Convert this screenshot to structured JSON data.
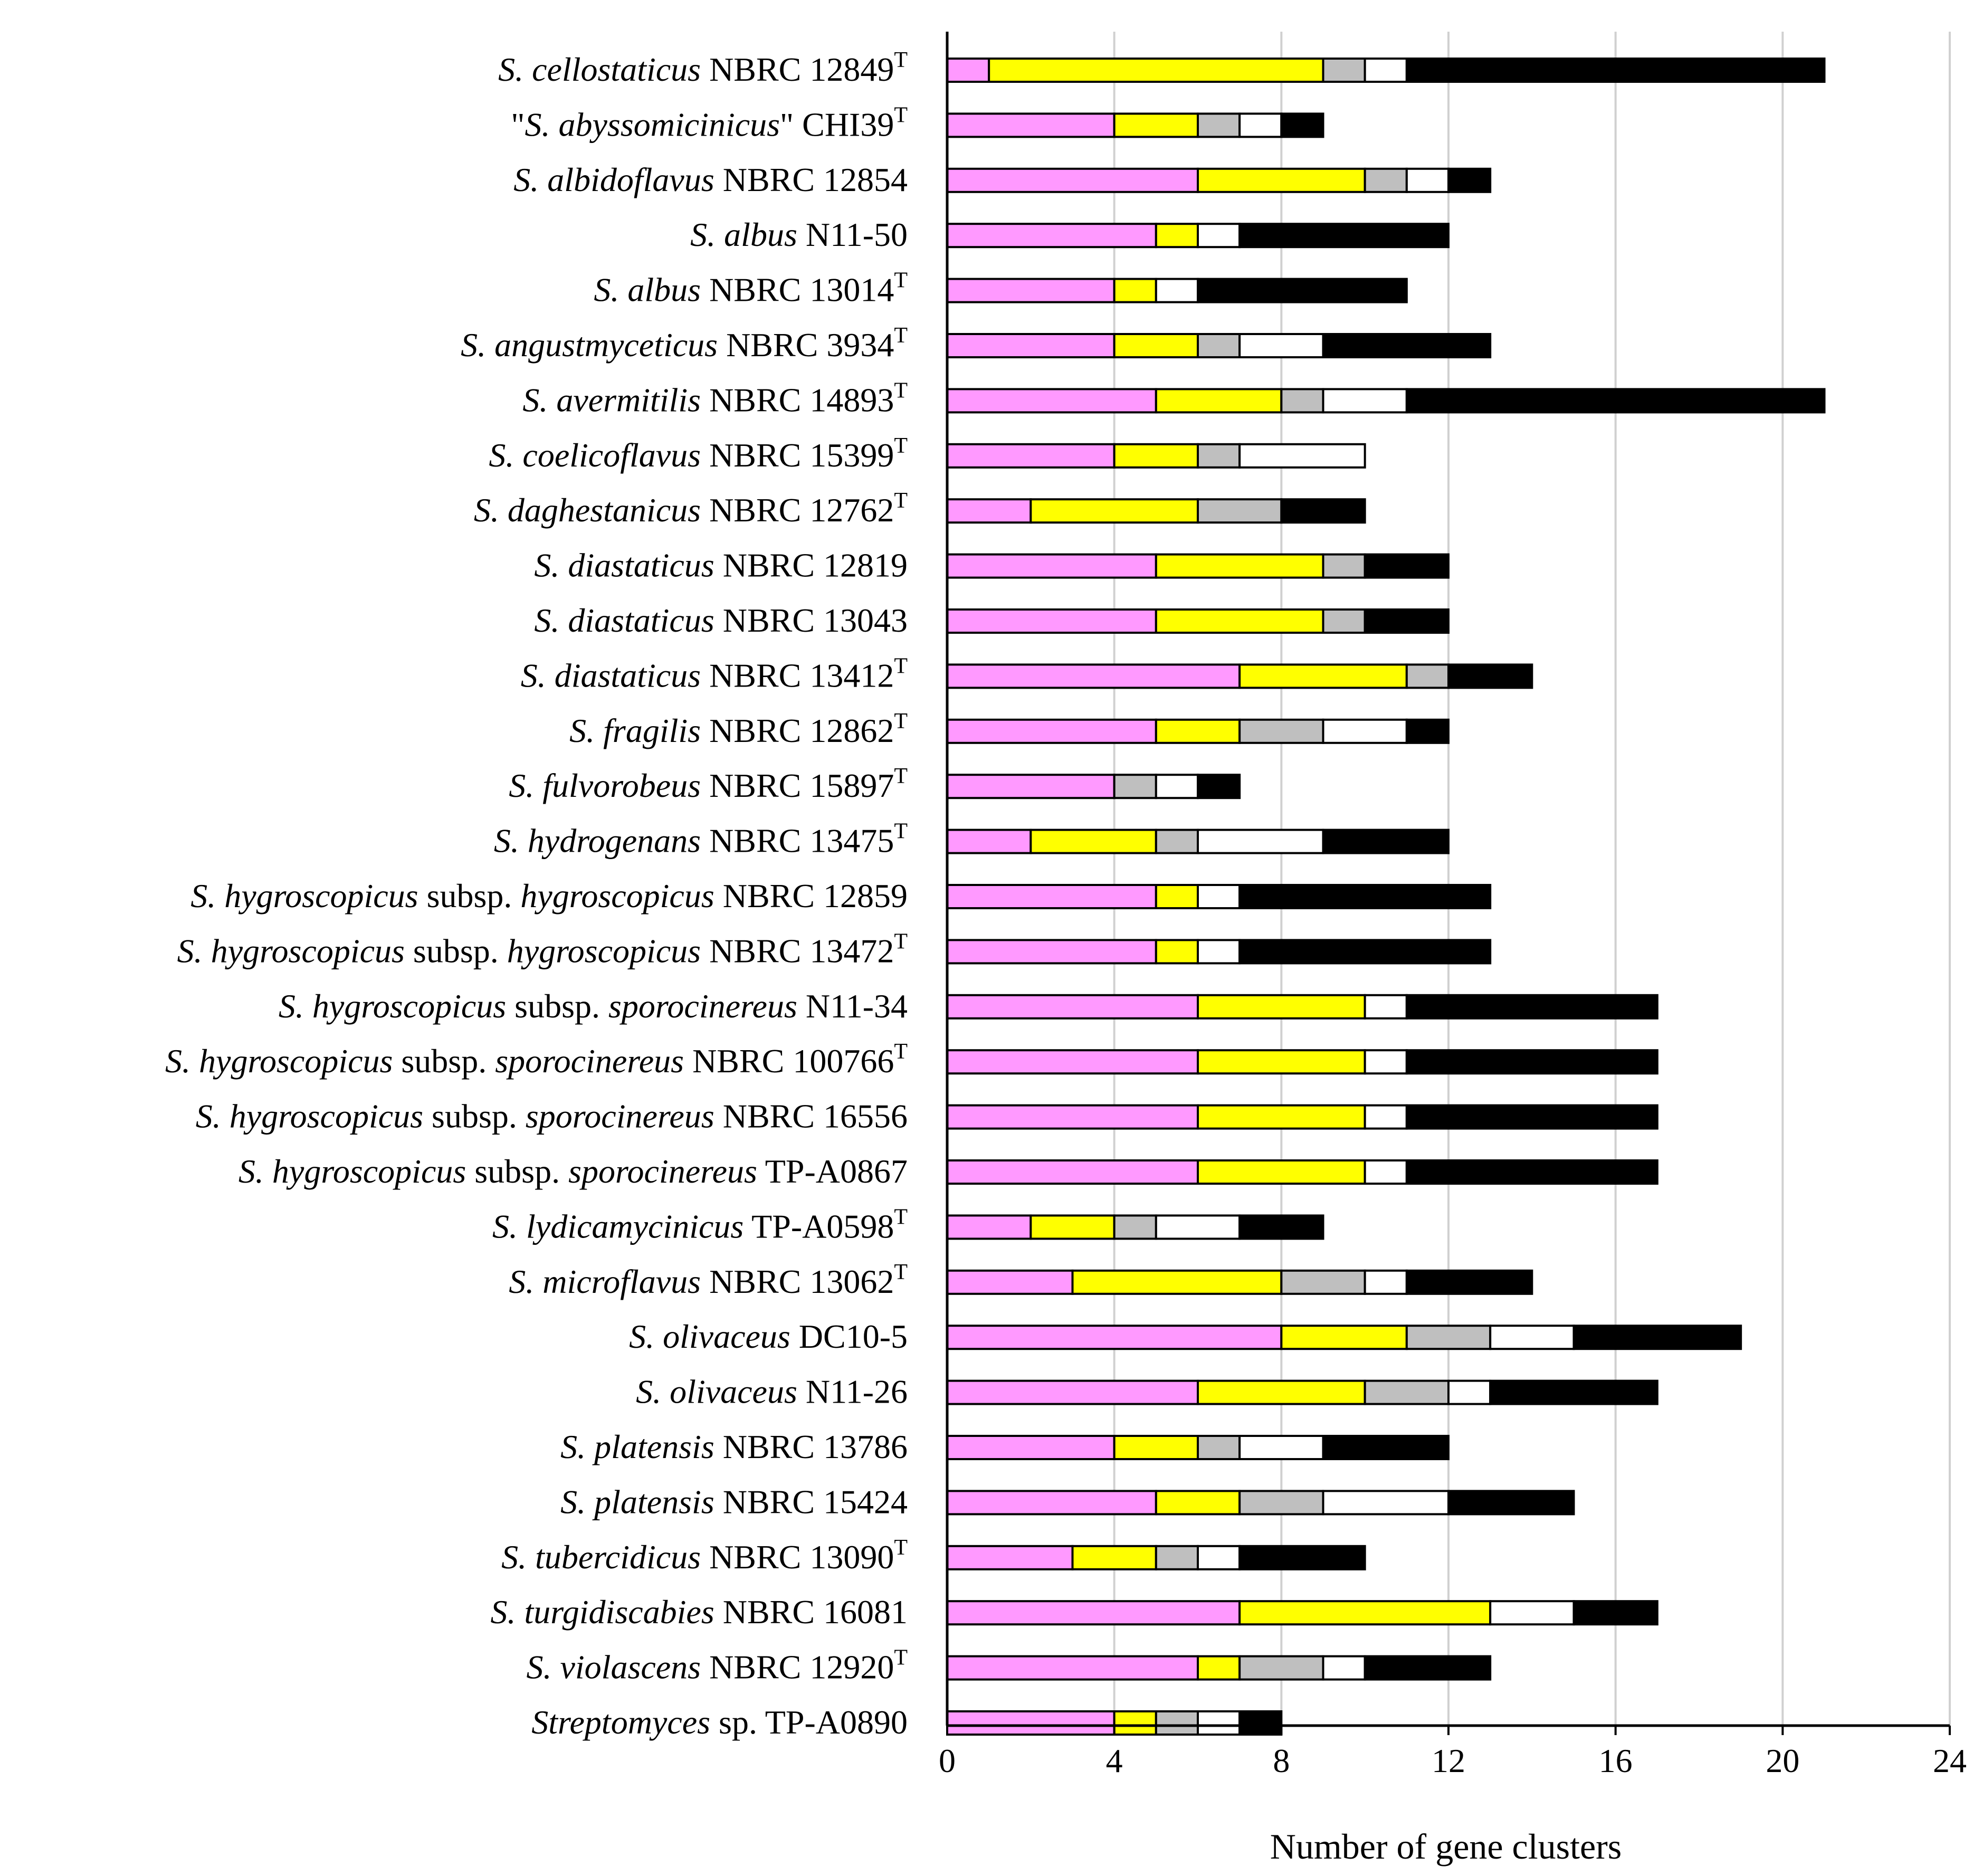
{
  "chart_data": {
    "type": "bar",
    "orientation": "horizontal",
    "stacked": true,
    "title": "",
    "xlabel": "Number of gene clusters",
    "ylabel": "",
    "xlim": [
      0,
      24
    ],
    "xticks": [
      0,
      4,
      8,
      12,
      16,
      20,
      24
    ],
    "grid": "vertical",
    "legend": "none",
    "segment_colors": [
      "#ff99ff",
      "#ffff00",
      "#bfbfbf",
      "#ffffff",
      "#000000"
    ],
    "categories": [
      {
        "parts": [
          [
            "S. cellostaticus",
            true
          ],
          [
            " NBRC 12849",
            false
          ]
        ],
        "sup": "T"
      },
      {
        "parts": [
          [
            "\"",
            false
          ],
          [
            "S. abyssomicinicus",
            true
          ],
          [
            "\" CHI39",
            false
          ]
        ],
        "sup": "T"
      },
      {
        "parts": [
          [
            "S. albidoflavus",
            true
          ],
          [
            " NBRC 12854",
            false
          ]
        ],
        "sup": ""
      },
      {
        "parts": [
          [
            "S. albus",
            true
          ],
          [
            " N11-50",
            false
          ]
        ],
        "sup": ""
      },
      {
        "parts": [
          [
            "S. albus",
            true
          ],
          [
            " NBRC 13014",
            false
          ]
        ],
        "sup": "T"
      },
      {
        "parts": [
          [
            "S. angustmyceticus",
            true
          ],
          [
            " NBRC 3934",
            false
          ]
        ],
        "sup": "T"
      },
      {
        "parts": [
          [
            "S. avermitilis",
            true
          ],
          [
            " NBRC 14893",
            false
          ]
        ],
        "sup": "T"
      },
      {
        "parts": [
          [
            "S. coelicoflavus",
            true
          ],
          [
            " NBRC 15399",
            false
          ]
        ],
        "sup": "T"
      },
      {
        "parts": [
          [
            "S. daghestanicus",
            true
          ],
          [
            " NBRC 12762",
            false
          ]
        ],
        "sup": "T"
      },
      {
        "parts": [
          [
            "S. diastaticus",
            true
          ],
          [
            " NBRC 12819",
            false
          ]
        ],
        "sup": ""
      },
      {
        "parts": [
          [
            "S. diastaticus",
            true
          ],
          [
            " NBRC 13043",
            false
          ]
        ],
        "sup": ""
      },
      {
        "parts": [
          [
            "S. diastaticus",
            true
          ],
          [
            " NBRC 13412",
            false
          ]
        ],
        "sup": "T"
      },
      {
        "parts": [
          [
            "S. fragilis",
            true
          ],
          [
            " NBRC 12862",
            false
          ]
        ],
        "sup": "T"
      },
      {
        "parts": [
          [
            "S. fulvorobeus",
            true
          ],
          [
            " NBRC 15897",
            false
          ]
        ],
        "sup": "T"
      },
      {
        "parts": [
          [
            "S. hydrogenans",
            true
          ],
          [
            " NBRC 13475",
            false
          ]
        ],
        "sup": "T"
      },
      {
        "parts": [
          [
            "S. hygroscopicus",
            true
          ],
          [
            " subsp. ",
            false
          ],
          [
            "hygroscopicus",
            true
          ],
          [
            " NBRC 12859",
            false
          ]
        ],
        "sup": ""
      },
      {
        "parts": [
          [
            "S. hygroscopicus",
            true
          ],
          [
            " subsp. ",
            false
          ],
          [
            "hygroscopicus",
            true
          ],
          [
            " NBRC 13472",
            false
          ]
        ],
        "sup": "T"
      },
      {
        "parts": [
          [
            "S. hygroscopicus",
            true
          ],
          [
            " subsp. ",
            false
          ],
          [
            "sporocinereus",
            true
          ],
          [
            " N11-34",
            false
          ]
        ],
        "sup": ""
      },
      {
        "parts": [
          [
            "S. hygroscopicus",
            true
          ],
          [
            " subsp. ",
            false
          ],
          [
            "sporocinereus",
            true
          ],
          [
            " NBRC 100766",
            false
          ]
        ],
        "sup": "T"
      },
      {
        "parts": [
          [
            "S. hygroscopicus",
            true
          ],
          [
            " subsp. ",
            false
          ],
          [
            "sporocinereus",
            true
          ],
          [
            " NBRC 16556",
            false
          ]
        ],
        "sup": ""
      },
      {
        "parts": [
          [
            "S. hygroscopicus",
            true
          ],
          [
            " subsp. ",
            false
          ],
          [
            "sporocinereus",
            true
          ],
          [
            " TP-A0867",
            false
          ]
        ],
        "sup": ""
      },
      {
        "parts": [
          [
            "S. lydicamycinicus",
            true
          ],
          [
            " TP-A0598",
            false
          ]
        ],
        "sup": "T"
      },
      {
        "parts": [
          [
            "S. microflavus",
            true
          ],
          [
            " NBRC 13062",
            false
          ]
        ],
        "sup": "T"
      },
      {
        "parts": [
          [
            "S. olivaceus",
            true
          ],
          [
            " DC10-5",
            false
          ]
        ],
        "sup": ""
      },
      {
        "parts": [
          [
            "S. olivaceus",
            true
          ],
          [
            " N11-26",
            false
          ]
        ],
        "sup": ""
      },
      {
        "parts": [
          [
            "S. platensis",
            true
          ],
          [
            " NBRC 13786",
            false
          ]
        ],
        "sup": ""
      },
      {
        "parts": [
          [
            "S. platensis",
            true
          ],
          [
            " NBRC 15424",
            false
          ]
        ],
        "sup": ""
      },
      {
        "parts": [
          [
            "S. tubercidicus",
            true
          ],
          [
            " NBRC 13090",
            false
          ]
        ],
        "sup": "T"
      },
      {
        "parts": [
          [
            "S. turgidiscabies",
            true
          ],
          [
            " NBRC 16081",
            false
          ]
        ],
        "sup": ""
      },
      {
        "parts": [
          [
            "S. violascens",
            true
          ],
          [
            " NBRC 12920",
            false
          ]
        ],
        "sup": "T"
      },
      {
        "parts": [
          [
            "Streptomyces",
            true
          ],
          [
            " sp. TP-A0890",
            false
          ]
        ],
        "sup": ""
      }
    ],
    "series": [
      {
        "name": "pink",
        "color": "#ff99ff",
        "values": [
          1,
          4,
          6,
          5,
          4,
          4,
          5,
          4,
          2,
          5,
          5,
          7,
          5,
          4,
          2,
          5,
          5,
          6,
          6,
          6,
          6,
          2,
          3,
          8,
          6,
          4,
          5,
          3,
          7,
          6,
          4
        ]
      },
      {
        "name": "yellow",
        "color": "#ffff00",
        "values": [
          8,
          2,
          4,
          1,
          1,
          2,
          3,
          2,
          4,
          4,
          4,
          4,
          2,
          0,
          3,
          1,
          1,
          4,
          4,
          4,
          4,
          2,
          5,
          3,
          4,
          2,
          2,
          2,
          6,
          1,
          1
        ]
      },
      {
        "name": "gray",
        "color": "#bfbfbf",
        "values": [
          1,
          1,
          1,
          0,
          0,
          1,
          1,
          1,
          2,
          1,
          1,
          1,
          2,
          1,
          1,
          0,
          0,
          0,
          0,
          0,
          0,
          1,
          2,
          2,
          2,
          1,
          2,
          1,
          0,
          2,
          1
        ]
      },
      {
        "name": "white",
        "color": "#ffffff",
        "values": [
          1,
          1,
          1,
          1,
          1,
          2,
          2,
          3,
          0,
          0,
          0,
          0,
          2,
          1,
          3,
          1,
          1,
          1,
          1,
          1,
          1,
          2,
          1,
          2,
          1,
          2,
          3,
          1,
          2,
          1,
          1
        ]
      },
      {
        "name": "black",
        "color": "#000000",
        "values": [
          10,
          1,
          1,
          5,
          5,
          4,
          10,
          0,
          2,
          2,
          2,
          2,
          1,
          1,
          3,
          6,
          6,
          6,
          6,
          6,
          6,
          2,
          3,
          4,
          4,
          3,
          3,
          3,
          2,
          3,
          1
        ]
      }
    ]
  }
}
